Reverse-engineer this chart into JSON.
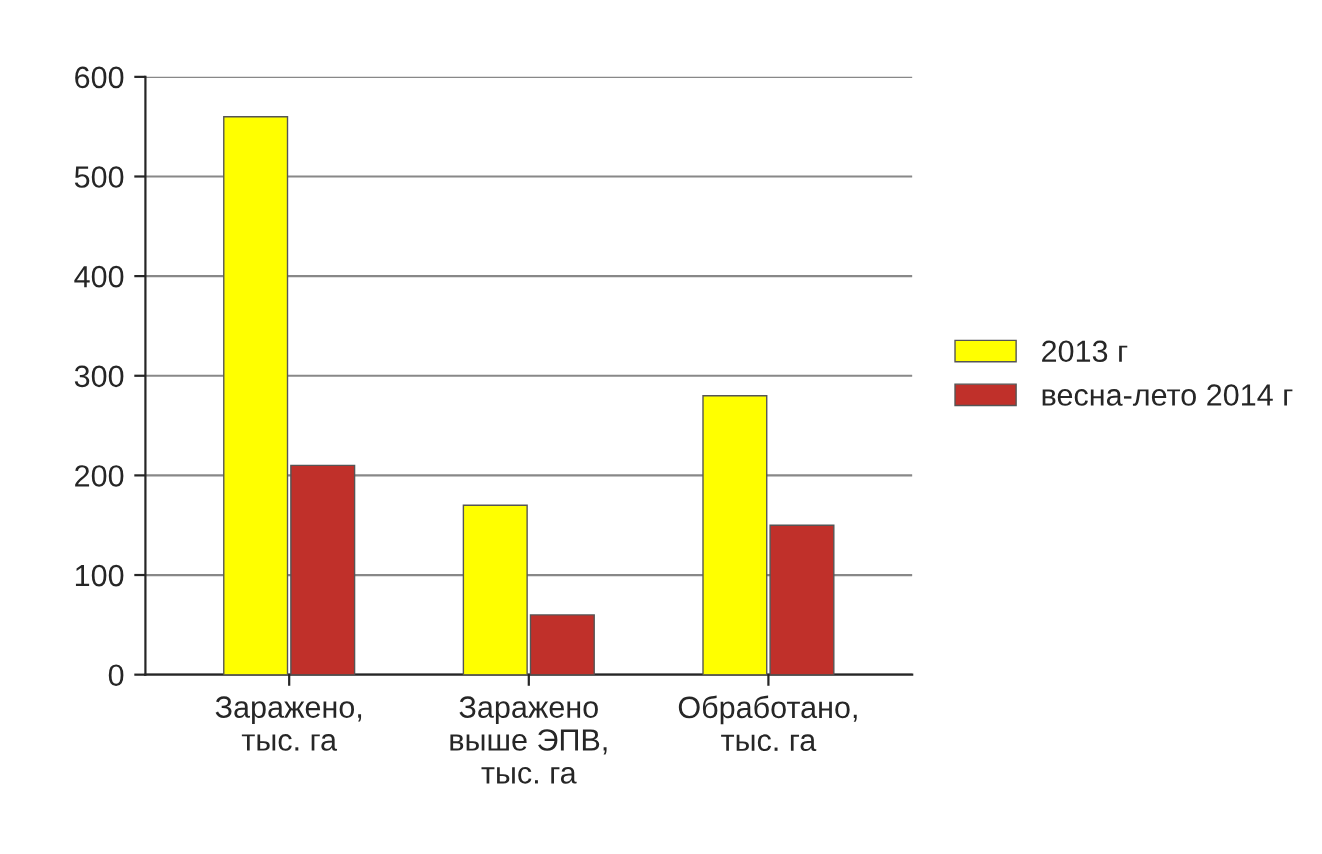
{
  "chart_data": {
    "type": "bar",
    "categories": [
      "Заражено,\nтыс. га",
      "Заражено\nвыше ЭПВ,\nтыс. га",
      "Обработано,\nтыс. га"
    ],
    "series": [
      {
        "name": "2013 г",
        "color": "#ffff00",
        "values": [
          560,
          170,
          280
        ]
      },
      {
        "name": "весна-лето 2014 г",
        "color": "#c0302a",
        "values": [
          210,
          60,
          150
        ]
      }
    ],
    "ylim": [
      0,
      600
    ],
    "yticks": [
      0,
      100,
      200,
      300,
      400,
      500,
      600
    ],
    "grid": "y",
    "legend": "right"
  }
}
